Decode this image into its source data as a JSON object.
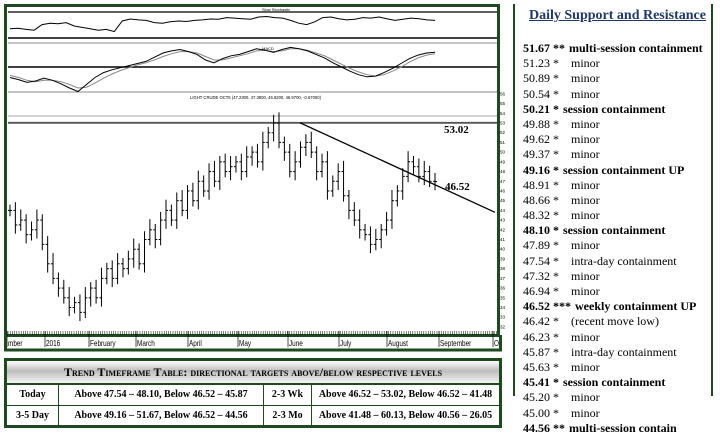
{
  "chart_data": {
    "type": "ohlc",
    "title": "LIGHT CRUDE OCT6 (47.2300, 47.3800, 46.8200, 46.9700, -0.67000)",
    "x_tick_labels": [
      "mber",
      "2016",
      "February",
      "March",
      "April",
      "May",
      "June",
      "July",
      "August",
      "September",
      "Oc"
    ],
    "y_tick_labels": [
      "56",
      "55",
      "54",
      "53",
      "52",
      "51",
      "50",
      "49",
      "48",
      "47",
      "46",
      "45",
      "44",
      "43",
      "42",
      "41",
      "40",
      "39",
      "38",
      "37",
      "36",
      "35",
      "34",
      "33",
      "32"
    ],
    "ylim": [
      31.5,
      56.5
    ],
    "closes": [
      44,
      42.5,
      43,
      41.5,
      42,
      43,
      40.5,
      38.5,
      37,
      36,
      35,
      34,
      34.5,
      33.5,
      35,
      36,
      35,
      37,
      38,
      37,
      38.5,
      38,
      39,
      40,
      38.5,
      41,
      42,
      41,
      43,
      44,
      43,
      45,
      44,
      46,
      45,
      47,
      46,
      48,
      47,
      49,
      48,
      48.5,
      49,
      48,
      49.5,
      50,
      49,
      51,
      52,
      53,
      51,
      50,
      48,
      49,
      50.5,
      51,
      50,
      48,
      49,
      46,
      47,
      48,
      45.5,
      44,
      43,
      42,
      41.5,
      40.5,
      41,
      42,
      43,
      45,
      46,
      47.5,
      49,
      48.5,
      47.5,
      48,
      47,
      46.97
    ],
    "annotations": [
      {
        "label": "53.02",
        "type": "horizontal-resistance",
        "value": 53.02
      },
      {
        "label": "46.52",
        "type": "downtrend-line",
        "value": 46.52
      }
    ],
    "stochastic_header": "Slow Stochastic",
    "stochastic": [
      40,
      42,
      38,
      35,
      55,
      60,
      58,
      62,
      50,
      45,
      40,
      35,
      38,
      30,
      68,
      75,
      72,
      70,
      62,
      60,
      65,
      68,
      66,
      70,
      72,
      75,
      74,
      80,
      78,
      76,
      74,
      82,
      84,
      80,
      78,
      70,
      60,
      55,
      65,
      80,
      82,
      76,
      72,
      74,
      80,
      78,
      82,
      76,
      70,
      74,
      78,
      76,
      72,
      70
    ],
    "macd_header": "MACD",
    "macd": [
      -1.5,
      -1.8,
      -2.2,
      -2.0,
      -1.6,
      -1.9,
      -2.4,
      -3.0,
      -3.5,
      -2.5,
      -1.5,
      -0.8,
      -0.4,
      -0.1,
      0.2,
      0.5,
      0.8,
      1.4,
      2.0,
      2.3,
      2.5,
      2.2,
      1.8,
      1.0,
      0.6,
      1.2,
      1.6,
      1.8,
      2.2,
      2.6,
      2.4,
      2.1,
      2.5,
      2.8,
      2.6,
      2.3,
      1.8,
      1.3,
      0.6,
      0.0,
      -0.6,
      -1.1,
      -1.4,
      -1.3,
      -0.8,
      -0.2,
      0.5,
      1.2,
      1.7,
      2.0,
      2.1
    ],
    "macd_signal": [
      -1.2,
      -1.5,
      -1.9,
      -2.1,
      -1.9,
      -1.9,
      -2.1,
      -2.5,
      -3.0,
      -2.9,
      -2.3,
      -1.6,
      -1.0,
      -0.5,
      -0.1,
      0.3,
      0.6,
      1.0,
      1.5,
      1.9,
      2.2,
      2.2,
      2.0,
      1.5,
      1.0,
      1.0,
      1.3,
      1.6,
      1.9,
      2.3,
      2.4,
      2.2,
      2.3,
      2.6,
      2.6,
      2.4,
      2.0,
      1.6,
      1.0,
      0.4,
      -0.2,
      -0.7,
      -1.1,
      -1.3,
      -1.1,
      -0.6,
      0.0,
      0.7,
      1.3,
      1.7,
      1.9
    ]
  },
  "table": {
    "title": "Trend Timeframe Table: directional targets above/below respective levels",
    "rows": [
      {
        "tf1": "Today",
        "v1": "Above 47.54 – 48.10, Below 46.52 – 45.87",
        "tf2": "2-3 Wk",
        "v2": "Above 46.52 – 53.02, Below 46.52 – 41.48"
      },
      {
        "tf1": "3-5 Day",
        "v1": "Above 49.16 – 51.67, Below 46.52 – 44.56",
        "tf2": "2-3 Mo",
        "v2": "Above  41.48 – 60.13, Below 40.56 – 26.05"
      }
    ]
  },
  "support_resistance": {
    "title": "Daily Support and Resistance",
    "items": [
      {
        "value": "51.67",
        "stars": "**",
        "note": "multi-session containment",
        "bold": true
      },
      {
        "value": "51.23",
        "stars": "*",
        "note": "minor",
        "bold": false
      },
      {
        "value": "50.89",
        "stars": "*",
        "note": "minor",
        "bold": false
      },
      {
        "value": "50.54",
        "stars": "*",
        "note": "minor",
        "bold": false
      },
      {
        "value": "50.21",
        "stars": "*",
        "note": "session containment",
        "bold": true
      },
      {
        "value": "49.88",
        "stars": "*",
        "note": "minor",
        "bold": false
      },
      {
        "value": "49.62",
        "stars": "*",
        "note": "minor",
        "bold": false
      },
      {
        "value": "49.37",
        "stars": "*",
        "note": "minor",
        "bold": false
      },
      {
        "value": "49.16",
        "stars": "*",
        "note": "session containment UP",
        "bold": true
      },
      {
        "value": "48.91",
        "stars": "*",
        "note": "minor",
        "bold": false
      },
      {
        "value": "48.66",
        "stars": "*",
        "note": "minor",
        "bold": false
      },
      {
        "value": "48.32",
        "stars": "*",
        "note": "minor",
        "bold": false
      },
      {
        "value": "48.10",
        "stars": "*",
        "note": "session containment",
        "bold": true
      },
      {
        "value": "47.89",
        "stars": "*",
        "note": "minor",
        "bold": false
      },
      {
        "value": "47.54",
        "stars": "*",
        "note": "intra-day containment",
        "bold": false
      },
      {
        "value": "47.32",
        "stars": "*",
        "note": "minor",
        "bold": false
      },
      {
        "value": "46.94",
        "stars": "*",
        "note": "minor",
        "bold": false
      },
      {
        "value": "46.52",
        "stars": "***",
        "note": "weekly containment UP",
        "bold": true
      },
      {
        "value": "46.42",
        "stars": "*",
        "note": "(recent move low)",
        "bold": false
      },
      {
        "value": "46.23",
        "stars": "*",
        "note": "minor",
        "bold": false
      },
      {
        "value": "45.87",
        "stars": "*",
        "note": "intra-day containment",
        "bold": false
      },
      {
        "value": "45.63",
        "stars": "*",
        "note": "minor",
        "bold": false
      },
      {
        "value": "45.41",
        "stars": "*",
        "note": "session containment",
        "bold": true
      },
      {
        "value": "45.20",
        "stars": "*",
        "note": "minor",
        "bold": false
      },
      {
        "value": "45.00",
        "stars": "*",
        "note": "minor",
        "bold": false
      },
      {
        "value": "44.56",
        "stars": "**",
        "note": "multi-session contain",
        "bold": true
      }
    ]
  }
}
